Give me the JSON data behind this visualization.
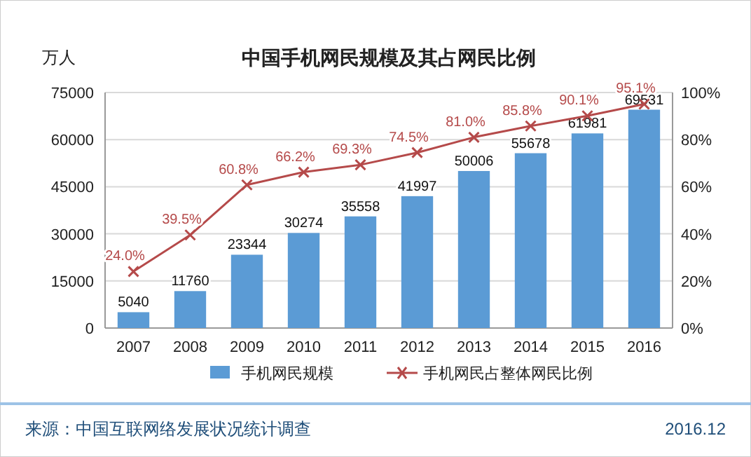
{
  "chart_data": {
    "type": "bar",
    "title": "中国手机网民规模及其占网民比例",
    "ylabel": "万人",
    "categories": [
      "2007",
      "2008",
      "2009",
      "2010",
      "2011",
      "2012",
      "2013",
      "2014",
      "2015",
      "2016"
    ],
    "series": [
      {
        "name": "手机网民规模",
        "color": "#5b9bd5",
        "values": [
          5040,
          11760,
          23344,
          30274,
          35558,
          41997,
          50006,
          55678,
          61981,
          69531
        ],
        "value_labels": [
          "5040",
          "11760",
          "23344",
          "30274",
          "35558",
          "41997",
          "50006",
          "55678",
          "61981",
          "69531"
        ]
      },
      {
        "name": "手机网民占整体网民比例",
        "type": "line",
        "axis": "y2",
        "color": "#b54a4a",
        "marker": "cross",
        "values": [
          24.0,
          39.5,
          60.8,
          66.2,
          69.3,
          74.5,
          81.0,
          85.8,
          90.1,
          95.1
        ],
        "value_labels": [
          "24.0%",
          "39.5%",
          "60.8%",
          "66.2%",
          "69.3%",
          "74.5%",
          "81.0%",
          "85.8%",
          "90.1%",
          "95.1%"
        ]
      }
    ],
    "ylim": [
      0,
      75000
    ],
    "yticks": [
      0,
      15000,
      30000,
      45000,
      60000,
      75000
    ],
    "y2lim": [
      0,
      100
    ],
    "y2ticks": [
      {
        "value": 0,
        "label": "0%"
      },
      {
        "value": 20,
        "label": "20%"
      },
      {
        "value": 40,
        "label": "40%"
      },
      {
        "value": 60,
        "label": "60%"
      },
      {
        "value": 80,
        "label": "80%"
      },
      {
        "value": 100,
        "label": "100%"
      }
    ],
    "grid": "y",
    "legend": "bottom",
    "annotations": [
      "来源：中国互联网络发展状况统计调查",
      "2016.12"
    ]
  }
}
